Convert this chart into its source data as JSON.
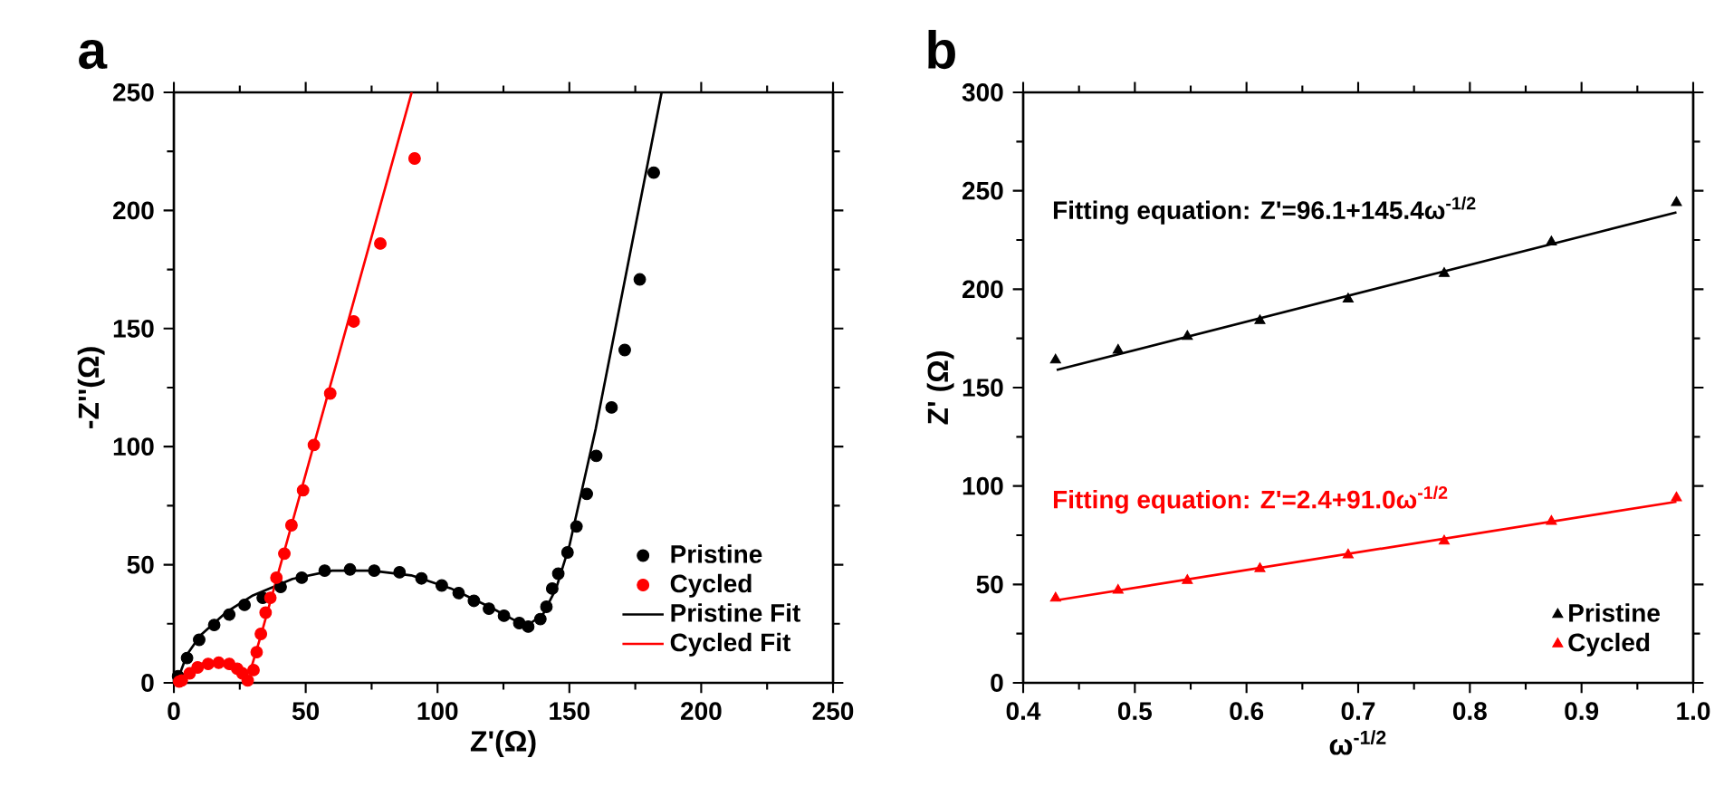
{
  "chart_data": [
    {
      "type": "scatter",
      "title": "a",
      "xlabel": "Z'(Ω)",
      "ylabel": "-Z''(Ω)",
      "xlim": [
        0,
        250
      ],
      "ylim": [
        0,
        250
      ],
      "xticks": [
        0,
        50,
        100,
        150,
        200,
        250
      ],
      "yticks": [
        0,
        50,
        100,
        150,
        200,
        250
      ],
      "legend": "bottom right",
      "series": [
        {
          "name": "Pristine",
          "color": "#000000",
          "marker": "circle",
          "x": [
            1.6,
            5,
            9.6,
            15.3,
            21,
            26.8,
            33.7,
            40.5,
            48.5,
            57.2,
            66.8,
            76,
            85.6,
            93.9,
            101.6,
            108,
            113.8,
            119.5,
            125.2,
            131,
            134.4,
            139,
            141.3,
            143.5,
            145.8,
            149.3,
            152.7,
            156.6,
            160.2,
            166,
            171,
            176.7,
            182
          ],
          "values": [
            2.8,
            10.5,
            18.2,
            24.5,
            28.9,
            33,
            36,
            40.6,
            44.5,
            47.5,
            48,
            47.5,
            46.8,
            44.2,
            41.2,
            38,
            34.7,
            31.4,
            28.4,
            25.3,
            23.8,
            27,
            32.2,
            39.9,
            46.2,
            55.2,
            66.2,
            80,
            96.1,
            116.6,
            140.9,
            170.8,
            216
          ]
        },
        {
          "name": "Cycled",
          "color": "#ff0000",
          "marker": "circle",
          "x": [
            2,
            3,
            6,
            9,
            13,
            17,
            21,
            24,
            26,
            28,
            30.2,
            31.4,
            33,
            34.8,
            36.6,
            38.9,
            41.9,
            44.6,
            49,
            53.1,
            59.3,
            68.2,
            78.3,
            91.3
          ],
          "values": [
            0.5,
            1,
            4,
            6.5,
            8,
            8.5,
            8,
            6,
            4,
            1,
            5.4,
            13,
            20.7,
            29.7,
            36,
            44.5,
            54.7,
            66.7,
            81.5,
            100.7,
            122.5,
            153,
            186,
            222
          ]
        },
        {
          "name": "Pristine Fit",
          "type": "line",
          "color": "#000000",
          "x": [
            1,
            5,
            10,
            20,
            30,
            45,
            60,
            75,
            90,
            105,
            120,
            130,
            135,
            140,
            145,
            150,
            160,
            185
          ],
          "values": [
            0,
            12,
            20,
            30,
            37,
            44,
            47.5,
            47.5,
            45.5,
            40,
            32,
            26,
            25,
            29,
            40,
            58,
            107.6,
            250
          ]
        },
        {
          "name": "Cycled Fit",
          "type": "line",
          "color": "#ff0000",
          "x": [
            1,
            5,
            10,
            17,
            23,
            27,
            29,
            33,
            90.2
          ],
          "values": [
            0,
            5,
            8,
            9,
            7,
            3,
            5,
            20,
            250
          ]
        }
      ]
    },
    {
      "type": "scatter",
      "title": "b",
      "xlabel": "ω$^{-1/2}$",
      "ylabel": "Z' (Ω)",
      "xlim": [
        0.4,
        1.0
      ],
      "ylim": [
        0,
        300
      ],
      "xticks": [
        0.4,
        0.5,
        0.6,
        0.7,
        0.8,
        0.9,
        {
          "value": 1.0,
          "label": "1.0"
        }
      ],
      "yticks": [
        0,
        50,
        100,
        150,
        200,
        250,
        300
      ],
      "legend": "bottom right",
      "annotations": [
        "Fitting equation: Z'=96.1+145.4ω$^{-1/2}$",
        "Fitting equation: Z'=2.4+91.0ω$^{-1/2}$"
      ],
      "series": [
        {
          "name": "Pristine",
          "color": "#000000",
          "marker": "triangle",
          "x": [
            0.429,
            0.485,
            0.547,
            0.612,
            0.691,
            0.777,
            0.873,
            0.985
          ],
          "values": [
            164,
            169,
            176,
            184,
            195,
            208,
            224,
            244
          ]
        },
        {
          "name": "Cycled",
          "color": "#ff0000",
          "marker": "triangle",
          "x": [
            0.429,
            0.485,
            0.547,
            0.612,
            0.691,
            0.777,
            0.873,
            0.985
          ],
          "values": [
            43,
            47,
            52,
            58,
            65,
            72,
            82,
            94
          ]
        },
        {
          "type": "line",
          "color": "#000000",
          "x": [
            0.43,
            0.985
          ],
          "values": [
            159,
            239
          ]
        },
        {
          "type": "line",
          "color": "#ff0000",
          "x": [
            0.43,
            0.985
          ],
          "values": [
            42,
            92
          ]
        }
      ]
    }
  ]
}
